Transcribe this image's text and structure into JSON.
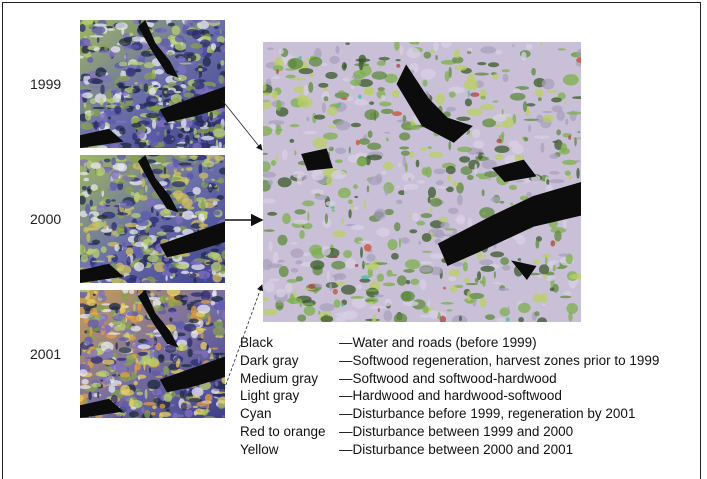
{
  "years": [
    "1999",
    "2000",
    "2001"
  ],
  "legend": [
    {
      "term": "Black",
      "description": "—Water and roads (before 1999)"
    },
    {
      "term": "Dark gray",
      "description": "—Softwood regeneration, harvest zones prior to 1999"
    },
    {
      "term": "Medium gray",
      "description": "—Softwood and softwood-hardwood"
    },
    {
      "term": "Light gray",
      "description": "—Hardwood and hardwood-softwood"
    },
    {
      "term": "Cyan",
      "description": "—Disturbance before 1999, regeneration by 2001"
    },
    {
      "term": "Red to orange",
      "description": "—Disturbance between 1999 and 2000"
    },
    {
      "term": "Yellow",
      "description": "—Disturbance between 2000 and 2001"
    }
  ]
}
